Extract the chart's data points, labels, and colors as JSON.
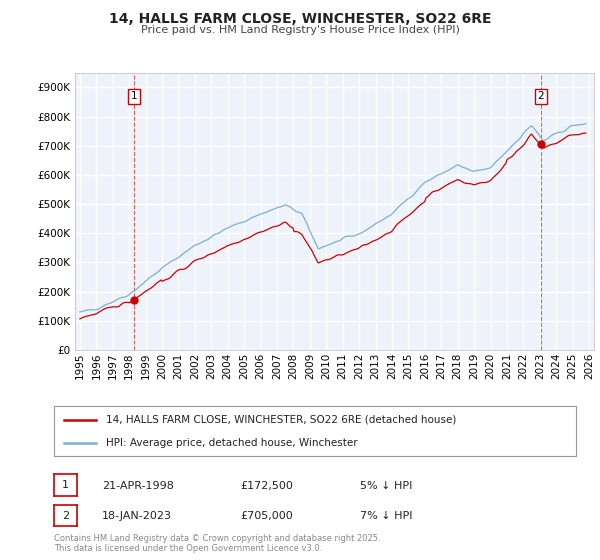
{
  "title": "14, HALLS FARM CLOSE, WINCHESTER, SO22 6RE",
  "subtitle": "Price paid vs. HM Land Registry's House Price Index (HPI)",
  "title_fontsize": 10,
  "subtitle_fontsize": 8,
  "background_color": "#ffffff",
  "plot_bg_color": "#eef2fa",
  "grid_color": "#ffffff",
  "ylim": [
    0,
    950000
  ],
  "xlim_start": 1994.7,
  "xlim_end": 2026.3,
  "yticks": [
    0,
    100000,
    200000,
    300000,
    400000,
    500000,
    600000,
    700000,
    800000,
    900000
  ],
  "ytick_labels": [
    "£0",
    "£100K",
    "£200K",
    "£300K",
    "£400K",
    "£500K",
    "£600K",
    "£700K",
    "£800K",
    "£900K"
  ],
  "xticks": [
    1995,
    1996,
    1997,
    1998,
    1999,
    2000,
    2001,
    2002,
    2003,
    2004,
    2005,
    2006,
    2007,
    2008,
    2009,
    2010,
    2011,
    2012,
    2013,
    2014,
    2015,
    2016,
    2017,
    2018,
    2019,
    2020,
    2021,
    2022,
    2023,
    2024,
    2025,
    2026
  ],
  "red_line_color": "#cc0000",
  "blue_line_color": "#7ab0d4",
  "sale1_x": 1998.31,
  "sale1_y": 172500,
  "sale1_label": "1",
  "sale2_x": 2023.05,
  "sale2_y": 705000,
  "sale2_label": "2",
  "legend_red": "14, HALLS FARM CLOSE, WINCHESTER, SO22 6RE (detached house)",
  "legend_blue": "HPI: Average price, detached house, Winchester",
  "annotation1_date": "21-APR-1998",
  "annotation1_price": "£172,500",
  "annotation1_hpi": "5% ↓ HPI",
  "annotation2_date": "18-JAN-2023",
  "annotation2_price": "£705,000",
  "annotation2_hpi": "7% ↓ HPI",
  "footer": "Contains HM Land Registry data © Crown copyright and database right 2025.\nThis data is licensed under the Open Government Licence v3.0."
}
